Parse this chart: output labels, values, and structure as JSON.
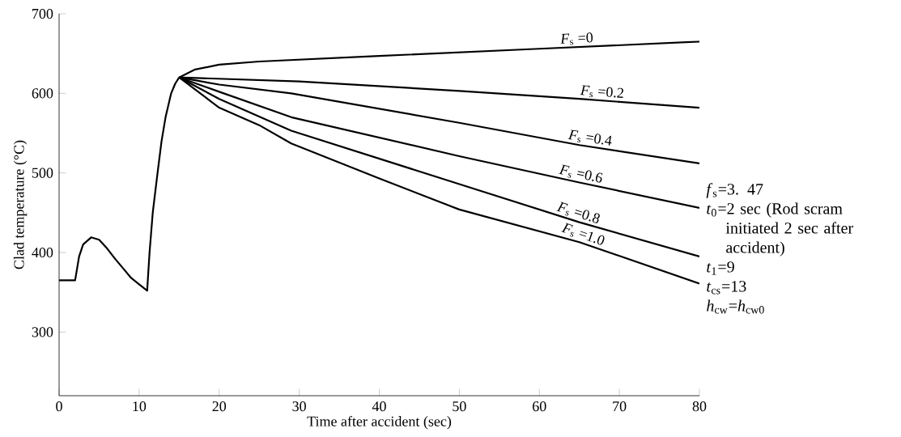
{
  "chart_data": {
    "type": "line",
    "xlabel": "Time after accident (sec)",
    "ylabel": "Clad temperature (°C)",
    "xlim": [
      0,
      80
    ],
    "ylim": [
      220,
      700
    ],
    "xticks": [
      0,
      10,
      20,
      30,
      40,
      50,
      60,
      70,
      80
    ],
    "yticks": [
      300,
      400,
      500,
      600,
      700
    ],
    "grid": false,
    "marker": "none",
    "line_style": "solid",
    "series": [
      {
        "color": "#000000",
        "x": [
          0,
          2,
          2.5,
          3,
          4,
          5,
          6,
          7,
          8,
          9,
          10,
          11,
          11.3,
          11.7,
          12.3,
          12.8,
          13.3,
          14,
          14.5,
          15
        ],
        "values": [
          365,
          365,
          395,
          410,
          419,
          416,
          405,
          392,
          380,
          368,
          360,
          352,
          400,
          450,
          500,
          540,
          570,
          600,
          612,
          620
        ]
      },
      {
        "name": "*F*$_{s}$ =0",
        "color": "#000000",
        "x": [
          15,
          17,
          20,
          25,
          40,
          60,
          80
        ],
        "values": [
          620,
          630,
          636,
          640,
          647,
          656,
          665
        ]
      },
      {
        "name": "*F*$_{s}$ =0.2",
        "color": "#000000",
        "x": [
          15,
          30,
          50,
          65,
          80
        ],
        "values": [
          620,
          615,
          603,
          593,
          582
        ]
      },
      {
        "name": "*F*$_{s}$ =0.4",
        "color": "#000000",
        "x": [
          15,
          20,
          29,
          50,
          65,
          80
        ],
        "values": [
          620,
          611,
          600,
          563,
          535,
          512
        ]
      },
      {
        "name": "*F*$_{s}$ =0.6",
        "color": "#000000",
        "x": [
          15,
          20,
          29,
          50,
          65,
          80
        ],
        "values": [
          620,
          602,
          570,
          521,
          488,
          456
        ]
      },
      {
        "name": "*F*$_{s}$ =0.8",
        "color": "#000000",
        "x": [
          15,
          20,
          29,
          50,
          65,
          80
        ],
        "values": [
          620,
          593,
          553,
          486,
          438,
          395
        ]
      },
      {
        "name": "*F*$_{s}$ =1.0",
        "color": "#000000",
        "x": [
          15,
          20,
          25,
          29,
          40,
          50,
          65,
          80
        ],
        "values": [
          620,
          582,
          560,
          537,
          493,
          454,
          413,
          361
        ]
      }
    ],
    "annotations": [
      "*f*$_{s}$=3. 47",
      "*t*$_{0}$=2 sec (Rod scram initiated 2 sec after accident)",
      "*t*$_{1}$=9",
      "*t*$_{cs}$=13",
      "*h*$_{cw}$=*h*$_{cw0}$"
    ]
  }
}
